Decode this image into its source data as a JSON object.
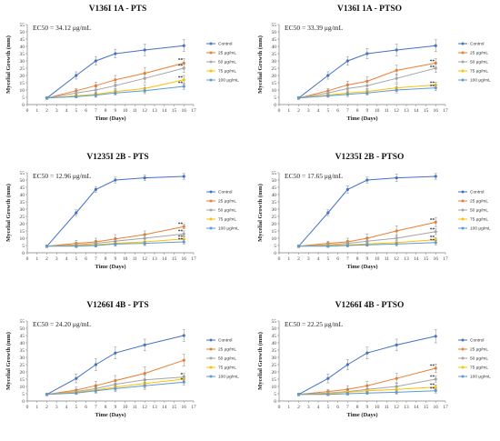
{
  "chart_data": [
    {
      "type": "line",
      "title": "V136I 1A - PTS",
      "annotation": "EC50 = 34.12 μg/mL",
      "xlabel": "Time (Days)",
      "ylabel": "Mycelial Growth (mm)",
      "xlim": [
        0,
        17
      ],
      "ylim": [
        0,
        55
      ],
      "xticks": [
        0,
        1,
        2,
        3,
        4,
        5,
        6,
        7,
        8,
        9,
        10,
        11,
        12,
        13,
        14,
        15,
        16,
        17
      ],
      "yticks": [
        0,
        5,
        10,
        15,
        20,
        25,
        30,
        35,
        40,
        45,
        50,
        55
      ],
      "x": [
        2,
        5,
        7,
        9,
        12,
        16
      ],
      "series": [
        {
          "name": "Control",
          "color": "#4472c4",
          "values": [
            4.5,
            20,
            30,
            35,
            37.5,
            40.5
          ],
          "errors": [
            1,
            2.5,
            3,
            3,
            4,
            4
          ]
        },
        {
          "name": "25 μg/mL",
          "color": "#ed7d31",
          "values": [
            4.5,
            9.5,
            13,
            17,
            21.5,
            28.5
          ],
          "errors": [
            0.8,
            1.5,
            2.5,
            3,
            4,
            3
          ]
        },
        {
          "name": "50 μg/mL",
          "color": "#a5a5a5",
          "values": [
            4.5,
            8,
            10,
            13,
            18,
            25
          ],
          "errors": [
            0.8,
            1.5,
            2,
            2.5,
            3,
            3
          ]
        },
        {
          "name": "75 μg/mL",
          "color": "#ffc000",
          "values": [
            4.5,
            6,
            7,
            9,
            11,
            17
          ],
          "errors": [
            0.5,
            1,
            1.5,
            2,
            2.5,
            3
          ]
        },
        {
          "name": "100 μg/mL",
          "color": "#5b9bd5",
          "values": [
            4.5,
            5.5,
            6.5,
            8,
            9.5,
            12.5
          ],
          "errors": [
            0.5,
            1,
            1.5,
            1.5,
            2,
            2
          ]
        }
      ],
      "significance": "**",
      "sig_marks": [
        [
          16,
          29
        ],
        [
          16,
          25
        ],
        [
          16,
          17
        ],
        [
          16,
          13
        ]
      ]
    },
    {
      "type": "line",
      "title": "V136I 1A - PTSO",
      "annotation": "EC50 = 33.39 μg/mL",
      "xlabel": "Time (Days)",
      "ylabel": "Mycelial Growth (mm)",
      "xlim": [
        0,
        17
      ],
      "ylim": [
        0,
        55
      ],
      "xticks": [
        0,
        1,
        2,
        3,
        4,
        5,
        6,
        7,
        8,
        9,
        10,
        11,
        12,
        13,
        14,
        15,
        16,
        17
      ],
      "yticks": [
        0,
        5,
        10,
        15,
        20,
        25,
        30,
        35,
        40,
        45,
        50,
        55
      ],
      "x": [
        2,
        5,
        7,
        9,
        12,
        16
      ],
      "series": [
        {
          "name": "Control",
          "color": "#4472c4",
          "values": [
            4.5,
            20,
            30,
            35,
            37.5,
            40.5
          ],
          "errors": [
            1,
            2.5,
            3,
            3.5,
            4,
            4
          ]
        },
        {
          "name": "25 μg/mL",
          "color": "#ed7d31",
          "values": [
            4.5,
            9.5,
            13.5,
            16,
            23.5,
            28.5
          ],
          "errors": [
            0.8,
            1.5,
            2.5,
            3,
            3.5,
            3
          ]
        },
        {
          "name": "50 μg/mL",
          "color": "#a5a5a5",
          "values": [
            4.5,
            8,
            11,
            13,
            18,
            25
          ],
          "errors": [
            0.8,
            1.5,
            2,
            2.5,
            3,
            3
          ]
        },
        {
          "name": "75 μg/mL",
          "color": "#ffc000",
          "values": [
            4.5,
            6.5,
            8,
            9,
            11.5,
            13.5
          ],
          "errors": [
            0.5,
            1,
            1.5,
            2,
            2.5,
            2
          ]
        },
        {
          "name": "100 μg/mL",
          "color": "#5b9bd5",
          "values": [
            4.5,
            6,
            7,
            8,
            10,
            11.5
          ],
          "errors": [
            0.5,
            1,
            1.5,
            1.5,
            2,
            2
          ]
        }
      ],
      "significance": "**",
      "sig_marks": [
        [
          16,
          28
        ],
        [
          16,
          24
        ],
        [
          16,
          13
        ],
        [
          16,
          11
        ]
      ]
    },
    {
      "type": "line",
      "title": "V1235I 2B - PTS",
      "annotation": "EC50 = 12.96 μg/mL",
      "xlabel": "Time (Days)",
      "ylabel": "Mycelial Growth (mm)",
      "xlim": [
        0,
        17
      ],
      "ylim": [
        0,
        55
      ],
      "xticks": [
        0,
        1,
        2,
        3,
        4,
        5,
        6,
        7,
        8,
        9,
        10,
        11,
        12,
        13,
        14,
        15,
        16,
        17
      ],
      "yticks": [
        0,
        5,
        10,
        15,
        20,
        25,
        30,
        35,
        40,
        45,
        50,
        55
      ],
      "x": [
        2,
        5,
        7,
        9,
        12,
        16
      ],
      "series": [
        {
          "name": "Control",
          "color": "#4472c4",
          "values": [
            4.5,
            27.5,
            43.5,
            50,
            51.5,
            52.5
          ],
          "errors": [
            1,
            2,
            2,
            2,
            2,
            2
          ]
        },
        {
          "name": "25 μg/mL",
          "color": "#ed7d31",
          "values": [
            4.5,
            6.5,
            7.5,
            9.5,
            12.5,
            18
          ],
          "errors": [
            0.8,
            2,
            2.5,
            3,
            2.5,
            1.5
          ]
        },
        {
          "name": "50 μg/mL",
          "color": "#a5a5a5",
          "values": [
            4.5,
            5.5,
            6.5,
            8,
            10,
            13
          ],
          "errors": [
            0.8,
            1.5,
            2,
            2.5,
            2.5,
            2
          ]
        },
        {
          "name": "75 μg/mL",
          "color": "#ffc000",
          "values": [
            4.5,
            5,
            5.5,
            6.5,
            7.5,
            9.5
          ],
          "errors": [
            0.5,
            1,
            1.5,
            1.5,
            2,
            2
          ]
        },
        {
          "name": "100 μg/mL",
          "color": "#5b9bd5",
          "values": [
            4.5,
            4.5,
            5,
            6,
            6.5,
            7.5
          ],
          "errors": [
            0.5,
            1,
            1,
            1.5,
            1.5,
            1.5
          ]
        }
      ],
      "significance": "**",
      "sig_marks": [
        [
          16,
          18
        ],
        [
          16,
          13
        ],
        [
          16,
          9.5
        ],
        [
          16,
          7.5
        ]
      ]
    },
    {
      "type": "line",
      "title": "V1235I 2B - PTSO",
      "annotation": "EC50 = 17.65 μg/mL",
      "xlabel": "Time (Days)",
      "ylabel": "Mycelial Growth (mm)",
      "xlim": [
        0,
        17
      ],
      "ylim": [
        0,
        55
      ],
      "xticks": [
        0,
        1,
        2,
        3,
        4,
        5,
        6,
        7,
        8,
        9,
        10,
        11,
        12,
        13,
        14,
        15,
        16,
        17
      ],
      "yticks": [
        0,
        5,
        10,
        15,
        20,
        25,
        30,
        35,
        40,
        45,
        50,
        55
      ],
      "x": [
        2,
        5,
        7,
        9,
        12,
        16
      ],
      "series": [
        {
          "name": "Control",
          "color": "#4472c4",
          "values": [
            4.5,
            27.5,
            43.5,
            50,
            51.5,
            52.5
          ],
          "errors": [
            1,
            2,
            2.5,
            2,
            2.5,
            2
          ]
        },
        {
          "name": "25 μg/mL",
          "color": "#ed7d31",
          "values": [
            4.5,
            6.5,
            7.5,
            10,
            15,
            21
          ],
          "errors": [
            0.8,
            1.5,
            2.5,
            3,
            3.5,
            3
          ]
        },
        {
          "name": "50 μg/mL",
          "color": "#a5a5a5",
          "values": [
            4.5,
            5.5,
            6.5,
            8,
            10,
            14.5
          ],
          "errors": [
            0.8,
            1.5,
            2,
            2.5,
            2.5,
            2
          ]
        },
        {
          "name": "75 μg/mL",
          "color": "#ffc000",
          "values": [
            4.5,
            5,
            5.5,
            6,
            7,
            9
          ],
          "errors": [
            0.5,
            1,
            1,
            1.5,
            1.5,
            1.5
          ]
        },
        {
          "name": "100 μg/mL",
          "color": "#5b9bd5",
          "values": [
            4.5,
            4.5,
            5,
            5.5,
            6,
            7
          ],
          "errors": [
            0.5,
            0.8,
            1,
            1,
            1.5,
            1.5
          ]
        }
      ],
      "significance": "**",
      "sig_marks": [
        [
          16,
          21
        ],
        [
          16,
          14.5
        ],
        [
          16,
          9
        ],
        [
          16,
          7
        ]
      ]
    },
    {
      "type": "line",
      "title": "V1266I 4B - PTS",
      "annotation": "EC50 = 24.20 μg/mL",
      "xlabel": "Time (Days)",
      "ylabel": "Mycelial Growth (mm)",
      "xlim": [
        0,
        17
      ],
      "ylim": [
        0,
        55
      ],
      "xticks": [
        0,
        1,
        2,
        3,
        4,
        5,
        6,
        7,
        8,
        9,
        10,
        11,
        12,
        13,
        14,
        15,
        16,
        17
      ],
      "yticks": [
        0,
        5,
        10,
        15,
        20,
        25,
        30,
        35,
        40,
        45,
        50,
        55
      ],
      "x": [
        2,
        5,
        7,
        9,
        12,
        16
      ],
      "series": [
        {
          "name": "Control",
          "color": "#4472c4",
          "values": [
            4.5,
            15.5,
            25,
            33,
            38.5,
            45
          ],
          "errors": [
            1,
            3,
            4,
            4,
            4,
            4
          ]
        },
        {
          "name": "25 μg/mL",
          "color": "#ed7d31",
          "values": [
            4.5,
            7.5,
            10.5,
            14,
            19,
            28
          ],
          "errors": [
            0.8,
            2,
            3,
            3.5,
            4.5,
            4
          ]
        },
        {
          "name": "50 μg/mL",
          "color": "#a5a5a5",
          "values": [
            4.5,
            6.5,
            8.5,
            11.5,
            14.5,
            16.5
          ],
          "errors": [
            0.8,
            1.5,
            2.5,
            3,
            3.5,
            2.5
          ]
        },
        {
          "name": "75 μg/mL",
          "color": "#ffc000",
          "values": [
            4.5,
            6,
            7.5,
            9.5,
            12,
            15
          ],
          "errors": [
            0.5,
            1.5,
            2,
            2.5,
            3,
            2.5
          ]
        },
        {
          "name": "100 μg/mL",
          "color": "#5b9bd5",
          "values": [
            4.5,
            5.5,
            7,
            8.5,
            10.5,
            13
          ],
          "errors": [
            0.5,
            1,
            1.5,
            2,
            2.5,
            2
          ]
        }
      ],
      "significance": "*",
      "sig_marks": [
        [
          16,
          16.5
        ],
        [
          16,
          13
        ]
      ]
    },
    {
      "type": "line",
      "title": "V1266I 4B - PTSO",
      "annotation": "EC50 = 22.25 μg/mL",
      "xlabel": "Time (Days)",
      "ylabel": "Mycelial Growth (mm)",
      "xlim": [
        0,
        17
      ],
      "ylim": [
        0,
        55
      ],
      "xticks": [
        0,
        1,
        2,
        3,
        4,
        5,
        6,
        7,
        8,
        9,
        10,
        11,
        12,
        13,
        14,
        15,
        16,
        17
      ],
      "yticks": [
        0,
        5,
        10,
        15,
        20,
        25,
        30,
        35,
        40,
        45,
        50,
        55
      ],
      "x": [
        2,
        5,
        7,
        9,
        12,
        16
      ],
      "series": [
        {
          "name": "Control",
          "color": "#4472c4",
          "values": [
            4.5,
            15.5,
            25,
            33,
            38.5,
            44.5
          ],
          "errors": [
            1,
            3,
            3.5,
            4,
            4,
            4.5
          ]
        },
        {
          "name": "25 μg/mL",
          "color": "#ed7d31",
          "values": [
            4.5,
            6.5,
            8,
            10.5,
            15.5,
            22.5
          ],
          "errors": [
            0.8,
            1.5,
            2.5,
            3,
            3.5,
            3
          ]
        },
        {
          "name": "50 μg/mL",
          "color": "#a5a5a5",
          "values": [
            4.5,
            5.5,
            6.5,
            8,
            10,
            15
          ],
          "errors": [
            0.8,
            1.5,
            2,
            2.5,
            2.5,
            2
          ]
        },
        {
          "name": "75 μg/mL",
          "color": "#ffc000",
          "values": [
            4.5,
            5,
            6,
            7,
            8,
            9.5
          ],
          "errors": [
            0.5,
            1,
            1.5,
            1.5,
            2,
            1.5
          ]
        },
        {
          "name": "100 μg/mL",
          "color": "#5b9bd5",
          "values": [
            4.5,
            4.5,
            5,
            5.5,
            6,
            7
          ],
          "errors": [
            0.5,
            0.8,
            1,
            1,
            1.5,
            1.5
          ]
        }
      ],
      "significance": "**",
      "sig_marks": [
        [
          16,
          22.5
        ],
        [
          16,
          15
        ],
        [
          16,
          9.5
        ],
        [
          16,
          7
        ]
      ]
    }
  ]
}
